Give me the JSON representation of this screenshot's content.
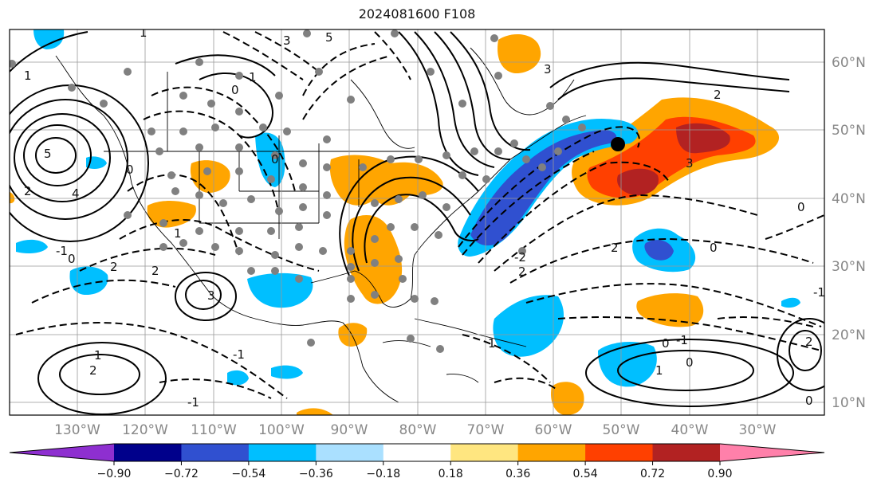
{
  "title": "2024081600 F108",
  "lat_labels": [
    "60°N",
    "50°N",
    "40°N",
    "30°N",
    "20°N",
    "10°N"
  ],
  "lon_labels": [
    "130°W",
    "120°W",
    "110°W",
    "100°W",
    "90°W",
    "80°W",
    "70°W",
    "60°W",
    "50°W",
    "40°W",
    "30°W"
  ],
  "colorbar": {
    "colors": [
      "#8e2fd0",
      "#00008b",
      "#3050d0",
      "#00bfff",
      "#aae0ff",
      "#ffffff",
      "#ffe680",
      "#ffa500",
      "#ff4000",
      "#b22222",
      "#ff80aa"
    ],
    "ticks": [
      "−0.90",
      "−0.72",
      "−0.54",
      "−0.36",
      "−0.18",
      "0.18",
      "0.36",
      "0.54",
      "0.72",
      "0.90"
    ]
  },
  "contour_labels": [
    "1",
    "3",
    "5",
    "1",
    "0",
    "2",
    "3",
    "4",
    "5",
    "0",
    "0",
    "-1",
    "2",
    "1",
    "0",
    "2",
    "1",
    "2",
    "0",
    "3",
    "2",
    "2",
    "-2",
    "0",
    "-1",
    "2",
    "0",
    "0",
    "1",
    "0",
    "-1",
    "2",
    "-1",
    "1",
    "3",
    "1",
    "-1"
  ],
  "colors": {
    "dots": "#808080",
    "contour": "#000000",
    "grid": "#999999",
    "marker": "#000000"
  }
}
